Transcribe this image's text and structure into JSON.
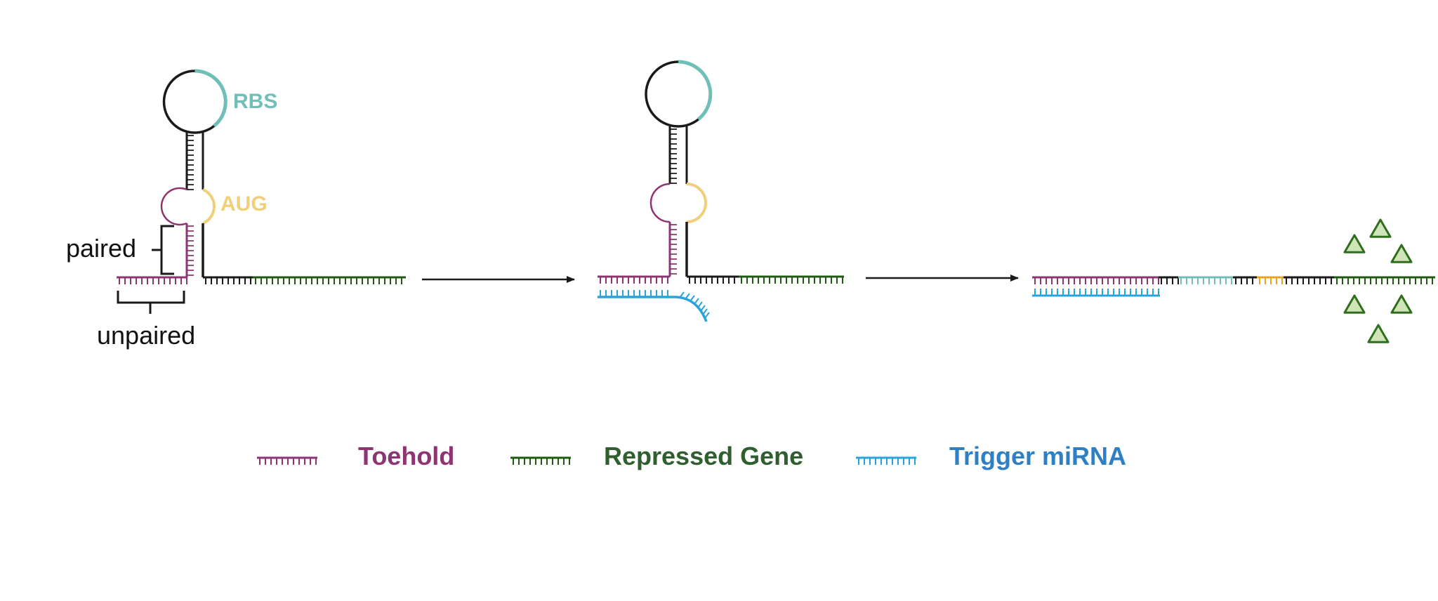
{
  "labels": {
    "rbs": "RBS",
    "aug": "AUG",
    "paired": "paired",
    "unpaired": "unpaired"
  },
  "legend": [
    {
      "key": "toehold",
      "label": "Toehold",
      "color": "#8e3470"
    },
    {
      "key": "repressed-gene",
      "label": "Repressed Gene",
      "color": "#2f5e2f"
    },
    {
      "key": "trigger-mirna",
      "label": "Trigger miRNA",
      "color": "#2f7fc4"
    }
  ],
  "colors": {
    "toehold": "#8e3470",
    "repressed_gene": "#1f5c12",
    "trigger": "#2aa3dc",
    "rbs": "#6fbfb8",
    "aug": "#f0cf7a",
    "aug_strong": "#e8a420",
    "backbone": "#1a1a1a",
    "protein": "#2f6e1c",
    "protein_fill": "#cfe5b8"
  },
  "panels": [
    {
      "name": "closed-switch",
      "has_labels": true
    },
    {
      "name": "trigger-binding"
    },
    {
      "name": "open-switch"
    }
  ]
}
